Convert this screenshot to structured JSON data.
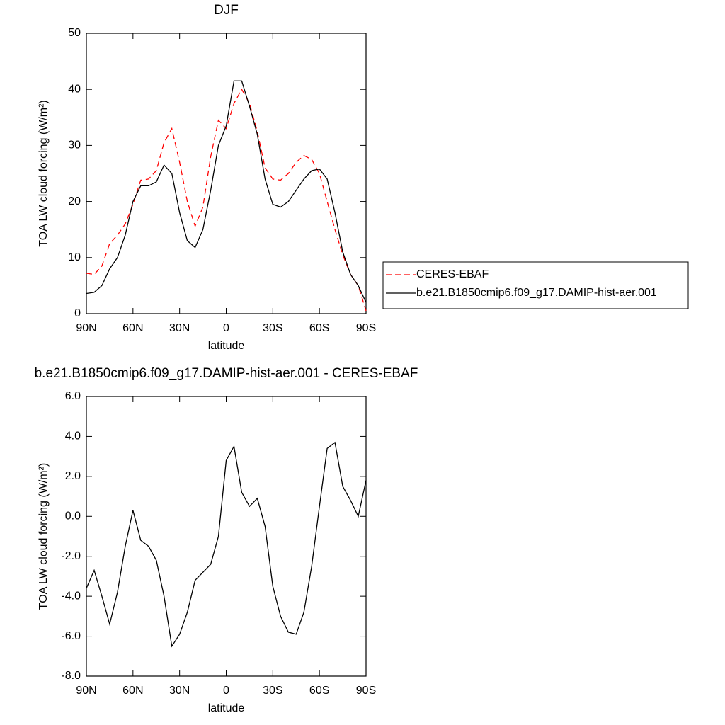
{
  "chart_data": [
    {
      "type": "line",
      "title": "DJF",
      "xlabel": "latitude",
      "ylabel": "TOA LW cloud forcing (W/m²)",
      "x": [
        90,
        85,
        80,
        75,
        70,
        65,
        60,
        55,
        50,
        45,
        40,
        35,
        30,
        25,
        20,
        15,
        10,
        5,
        0,
        -5,
        -10,
        -15,
        -20,
        -25,
        -30,
        -35,
        -40,
        -45,
        -50,
        -55,
        -60,
        -65,
        -70,
        -75,
        -80,
        -85,
        -90
      ],
      "series": [
        {
          "name": "CERES-EBAF",
          "color": "#ff0000",
          "line_style": "dashed",
          "values": [
            7.2,
            7.0,
            8.5,
            12.5,
            14,
            16,
            19.5,
            23.8,
            24,
            25.5,
            30.5,
            33,
            27,
            20,
            15.6,
            19,
            28,
            34.5,
            33,
            37.5,
            40,
            37.5,
            32.5,
            26,
            24,
            23.8,
            25,
            27,
            28.2,
            27.5,
            25,
            20,
            15,
            10.5,
            7,
            5,
            0.5
          ]
        },
        {
          "name": "b.e21.B1850cmip6.f09_g17.DAMIP-hist-aer.001",
          "color": "#000000",
          "line_style": "solid",
          "values": [
            3.6,
            3.8,
            5,
            8,
            10,
            14,
            20,
            22.8,
            22.8,
            23.5,
            26.5,
            25,
            18,
            13,
            11.8,
            15,
            22,
            30,
            33.5,
            41.5,
            41.5,
            37,
            32,
            24,
            19.5,
            19,
            20,
            22,
            24,
            25.5,
            25.8,
            24,
            18,
            11,
            7,
            5,
            2
          ]
        }
      ],
      "xlim": [
        90,
        -90
      ],
      "xticks": [
        {
          "value": 90,
          "label": "90N"
        },
        {
          "value": 60,
          "label": "60N"
        },
        {
          "value": 30,
          "label": "30N"
        },
        0,
        {
          "value": -30,
          "label": "30S"
        },
        {
          "value": -60,
          "label": "60S"
        },
        {
          "value": -90,
          "label": "90S"
        }
      ],
      "ylim": [
        0,
        50
      ],
      "yticks": [
        0,
        10,
        20,
        30,
        40,
        50
      ],
      "legend": "right"
    },
    {
      "type": "line",
      "title": "b.e21.B1850cmip6.f09_g17.DAMIP-hist-aer.001 - CERES-EBAF",
      "xlabel": "latitude",
      "ylabel": "TOA LW cloud forcing (W/m²)",
      "x": [
        90,
        85,
        80,
        75,
        70,
        65,
        60,
        55,
        50,
        45,
        40,
        35,
        30,
        25,
        20,
        15,
        10,
        5,
        0,
        -5,
        -10,
        -15,
        -20,
        -25,
        -30,
        -35,
        -40,
        -45,
        -50,
        -55,
        -60,
        -65,
        -70,
        -75,
        -80,
        -85,
        -90
      ],
      "series": [
        {
          "color": "#000000",
          "line_style": "solid",
          "values": [
            -3.6,
            -2.7,
            -4,
            -5.4,
            -3.8,
            -1.5,
            0.3,
            -1.2,
            -1.5,
            -2.2,
            -4,
            -6.5,
            -5.9,
            -4.8,
            -3.2,
            -2.8,
            -2.4,
            -1.0,
            2.8,
            3.5,
            1.2,
            0.5,
            0.9,
            -0.5,
            -3.5,
            -5,
            -5.8,
            -5.9,
            -4.8,
            -2.5,
            0.5,
            3.4,
            3.7,
            1.5,
            0.8,
            0,
            1.8
          ]
        }
      ],
      "xlim": [
        90,
        -90
      ],
      "xticks": [
        {
          "value": 90,
          "label": "90N"
        },
        {
          "value": 60,
          "label": "60N"
        },
        {
          "value": 30,
          "label": "30N"
        },
        0,
        {
          "value": -30,
          "label": "30S"
        },
        {
          "value": -60,
          "label": "60S"
        },
        {
          "value": -90,
          "label": "90S"
        }
      ],
      "ylim": [
        -8,
        6
      ],
      "yticks": [
        {
          "value": -8,
          "label": "-8.0"
        },
        {
          "value": -6,
          "label": "-6.0"
        },
        {
          "value": -4,
          "label": "-4.0"
        },
        {
          "value": -2,
          "label": "-2.0"
        },
        {
          "value": 0,
          "label": "0.0"
        },
        {
          "value": 2,
          "label": "2.0"
        },
        {
          "value": 4,
          "label": "4.0"
        },
        {
          "value": 6,
          "label": "6.0"
        }
      ]
    }
  ]
}
